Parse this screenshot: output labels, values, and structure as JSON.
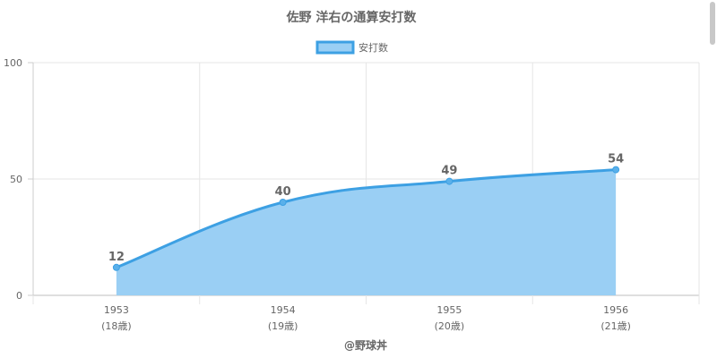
{
  "chart_data": {
    "type": "area",
    "title": "佐野 洋右の通算安打数",
    "categories": [
      "1953",
      "1954",
      "1955",
      "1956"
    ],
    "sub_labels": [
      "(18歳)",
      "(19歳)",
      "(20歳)",
      "(21歳)"
    ],
    "series": [
      {
        "name": "安打数",
        "values": [
          12,
          40,
          49,
          54
        ]
      }
    ],
    "ylim": [
      0,
      100
    ],
    "yticks": [
      0,
      50,
      100
    ],
    "grid": true,
    "legend": "top-center",
    "credit": "@野球丼",
    "colors": {
      "line": "#3da0e3",
      "fill": "#9acff4",
      "point": "#5ab0ea"
    }
  }
}
